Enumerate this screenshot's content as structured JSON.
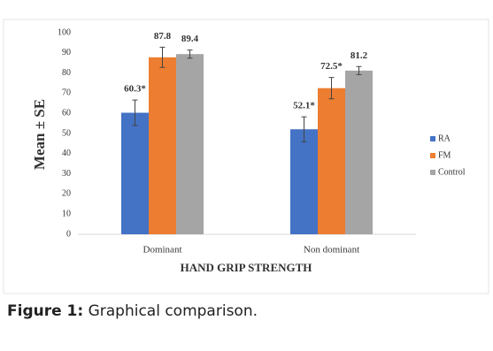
{
  "chart_data": {
    "type": "bar",
    "y_label": "Mean ± SE",
    "x_label": "HAND GRIP STRENGTH",
    "categories": [
      "Dominant",
      "Non dominant"
    ],
    "series": [
      {
        "name": "RA",
        "color": "#4472c4",
        "values": [
          60.3,
          52.1
        ],
        "value_labels": [
          "60.3*",
          "52.1*"
        ],
        "errors": [
          6.3,
          6.2
        ]
      },
      {
        "name": "FM",
        "color": "#ed7d31",
        "values": [
          87.8,
          72.5
        ],
        "value_labels": [
          "87.8",
          "72.5*"
        ],
        "errors": [
          5.0,
          5.3
        ]
      },
      {
        "name": "Control",
        "color": "#a5a5a5",
        "values": [
          89.4,
          81.2
        ],
        "value_labels": [
          "89.4",
          "81.2"
        ],
        "errors": [
          2.0,
          2.0
        ]
      }
    ],
    "ylim": [
      0,
      100
    ],
    "yticks": [
      0,
      10,
      20,
      30,
      40,
      50,
      60,
      70,
      80,
      90,
      100
    ],
    "legend": "right"
  },
  "caption": {
    "label": "Figure 1:",
    "text": "Graphical comparison."
  }
}
